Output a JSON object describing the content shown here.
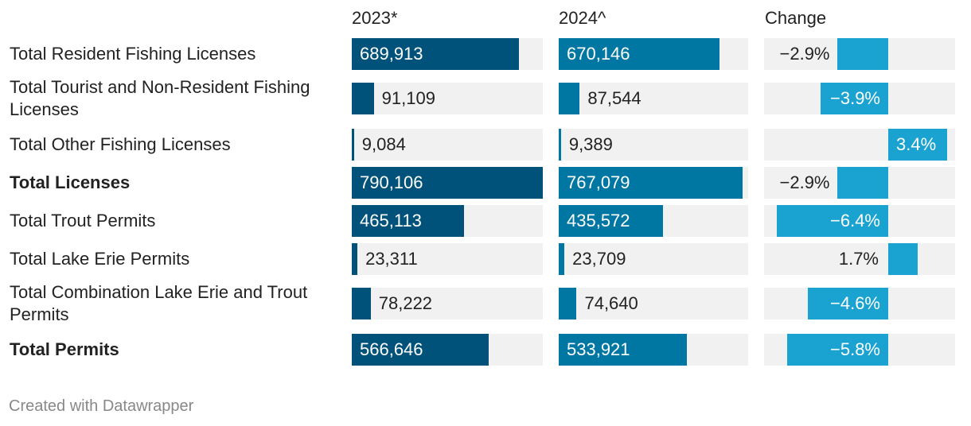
{
  "chart_data": {
    "type": "table",
    "columns": [
      "2023*",
      "2024^",
      "Change"
    ],
    "rows": [
      {
        "label": "Total Resident Fishing Licenses",
        "bold": false,
        "v2023": 689913,
        "v2024": 670146,
        "change": -2.9,
        "t2023": "689,913",
        "t2024": "670,146",
        "tchange": "−2.9%"
      },
      {
        "label": "Total Tourist and Non-Resident Fishing Licenses",
        "bold": false,
        "v2023": 91109,
        "v2024": 87544,
        "change": -3.9,
        "t2023": "91,109",
        "t2024": "87,544",
        "tchange": "−3.9%"
      },
      {
        "label": "Total Other Fishing Licenses",
        "bold": false,
        "v2023": 9084,
        "v2024": 9389,
        "change": 3.4,
        "t2023": "9,084",
        "t2024": "9,389",
        "tchange": "3.4%"
      },
      {
        "label": "Total Licenses",
        "bold": true,
        "v2023": 790106,
        "v2024": 767079,
        "change": -2.9,
        "t2023": "790,106",
        "t2024": "767,079",
        "tchange": "−2.9%"
      },
      {
        "label": "Total Trout Permits",
        "bold": false,
        "v2023": 465113,
        "v2024": 435572,
        "change": -6.4,
        "t2023": "465,113",
        "t2024": "435,572",
        "tchange": "−6.4%"
      },
      {
        "label": "Total Lake Erie Permits",
        "bold": false,
        "v2023": 23311,
        "v2024": 23709,
        "change": 1.7,
        "t2023": "23,311",
        "t2024": "23,709",
        "tchange": "1.7%"
      },
      {
        "label": "Total Combination Lake Erie and Trout Permits",
        "bold": false,
        "v2023": 78222,
        "v2024": 74640,
        "change": -4.6,
        "t2023": "78,222",
        "t2024": "74,640",
        "tchange": "−4.6%"
      },
      {
        "label": "Total Permits",
        "bold": true,
        "v2023": 566646,
        "v2024": 533921,
        "change": -5.8,
        "t2023": "566,646",
        "t2024": "533,921",
        "tchange": "−5.8%"
      }
    ],
    "max_value": 790106,
    "change_range": [
      -6.4,
      3.4
    ]
  },
  "colors": {
    "col2023": "#00527a",
    "col2024": "#0077a3",
    "change": "#1aa3d1",
    "track": "#f1f1f1"
  },
  "footer": "Created with Datawrapper"
}
